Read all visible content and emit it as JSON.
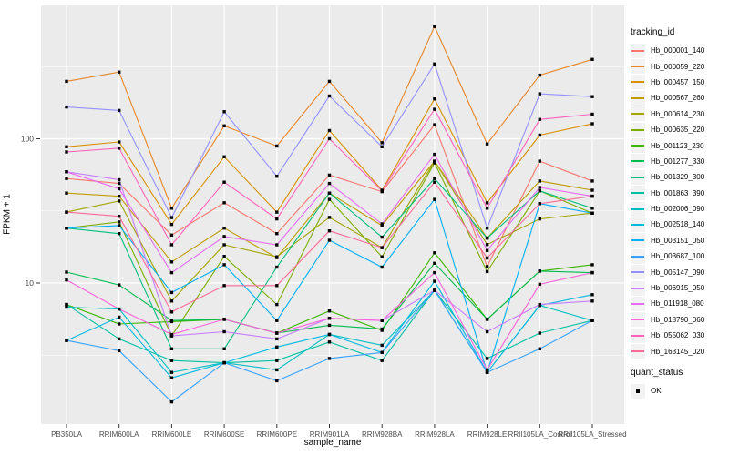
{
  "figure": {
    "legend": {
      "tracking_title": "tracking_id",
      "quant_title": "quant_status",
      "quant_items": [
        "OK"
      ]
    },
    "colors": {
      "page_bg": "#FFFFFF",
      "panel_bg": "#EBEBEB",
      "grid_major": "#FFFFFF",
      "grid_minor": "#FFFFFF",
      "axis_text": "#4D4D4D",
      "title_text": "#000000",
      "legend_key_bg": "#F2F2F2",
      "point": "#000000"
    }
  },
  "chart_data": {
    "type": "line",
    "title": "",
    "xlabel": "sample_name",
    "ylabel": "FPKM + 1",
    "y_scale": "log10",
    "ylim": [
      1,
      790
    ],
    "grid": true,
    "legend_position": "right",
    "y_major_ticks": [
      100,
      10
    ],
    "y_tick_labels": [
      "100",
      "10"
    ],
    "y_minor_gridlines": [
      316.2,
      31.62,
      3.162
    ],
    "point_marker": {
      "shape": "small-black-square",
      "meaning": "quant_status = OK"
    },
    "x_categories": [
      "PB350LA",
      "RRIM600LA",
      "RRIM600LE",
      "RRIM600SE",
      "RRIM600PE",
      "RRIM901LA",
      "RRIM928BA",
      "RRIM928LA",
      "RRIM928LE",
      "RRII105LA_Control",
      "RRII105LA_Stressed"
    ],
    "series": [
      {
        "name": "Hb_000001_140",
        "color": "#F8766D",
        "values": [
          53,
          49,
          21.5,
          36,
          22,
          56,
          43,
          125,
          13,
          70,
          51
        ]
      },
      {
        "name": "Hb_000059_220",
        "color": "#E88526",
        "values": [
          250,
          290,
          33,
          123,
          89,
          250,
          94,
          600,
          92,
          276,
          355
        ]
      },
      {
        "name": "Hb_000457_150",
        "color": "#D89000",
        "values": [
          88,
          95,
          25.5,
          75,
          31,
          114,
          44,
          189,
          36,
          106,
          127
        ]
      },
      {
        "name": "Hb_000567_260",
        "color": "#C09B00",
        "values": [
          42,
          40,
          14,
          24,
          15,
          42,
          25,
          70,
          20.5,
          51,
          44
        ]
      },
      {
        "name": "Hb_000614_230",
        "color": "#A3A500",
        "values": [
          31,
          37,
          7.5,
          18.4,
          15.2,
          28.5,
          17.6,
          70,
          18.5,
          27.8,
          30.5
        ]
      },
      {
        "name": "Hb_000635_220",
        "color": "#7CAE00",
        "values": [
          24,
          26.5,
          4.3,
          15.3,
          7.1,
          38,
          15.2,
          68,
          12,
          43.5,
          30.5
        ]
      },
      {
        "name": "Hb_001123_230",
        "color": "#39B600",
        "values": [
          7.1,
          5.2,
          5.4,
          5.6,
          4.5,
          6.4,
          4.7,
          16.2,
          5.6,
          12.1,
          13.4
        ]
      },
      {
        "name": "Hb_001277_330",
        "color": "#00BB4E",
        "values": [
          11.9,
          9.7,
          5.5,
          5.6,
          4.5,
          5.1,
          4.8,
          13.7,
          5.6,
          12.1,
          11.8
        ]
      },
      {
        "name": "Hb_001329_300",
        "color": "#00BF7D",
        "values": [
          24,
          22,
          3.5,
          3.5,
          12.9,
          42,
          20.8,
          53,
          20.5,
          43.5,
          33
        ]
      },
      {
        "name": "Hb_001863_390",
        "color": "#00C1A3",
        "values": [
          7.1,
          4.1,
          2.9,
          2.8,
          2.9,
          3.9,
          2.9,
          8.9,
          3.0,
          4.5,
          5.5
        ]
      },
      {
        "name": "Hb_002006_090",
        "color": "#00BFC4",
        "values": [
          6.8,
          6.6,
          2.4,
          2.8,
          2.5,
          4.4,
          3.7,
          8.9,
          2.4,
          7.0,
          5.5
        ]
      },
      {
        "name": "Hb_002518_140",
        "color": "#00BAE0",
        "values": [
          4.0,
          5.8,
          2.2,
          2.8,
          3.6,
          4.4,
          3.3,
          10.3,
          2.4,
          7.0,
          8.3
        ]
      },
      {
        "name": "Hb_003151_050",
        "color": "#00B0F6",
        "values": [
          24,
          25,
          8.6,
          13.4,
          5.5,
          19.8,
          12.9,
          38,
          2.4,
          35.5,
          30.5
        ]
      },
      {
        "name": "Hb_003687_100",
        "color": "#35A2FF",
        "values": [
          4.0,
          3.4,
          1.5,
          2.8,
          2.1,
          3.0,
          3.3,
          8.9,
          2.4,
          3.5,
          5.5
        ]
      },
      {
        "name": "Hb_005147_090",
        "color": "#9590FF",
        "values": [
          166,
          157,
          28.4,
          154,
          55,
          198,
          88,
          330,
          24,
          205,
          196
        ]
      },
      {
        "name": "Hb_006915_050",
        "color": "#C77CFF",
        "values": [
          59,
          52,
          4.3,
          4.6,
          4.1,
          5.7,
          5.5,
          8.9,
          4.6,
          7.1,
          7.5
        ]
      },
      {
        "name": "Hb_011918_080",
        "color": "#E76BF3",
        "values": [
          59,
          45,
          11.8,
          21,
          18.4,
          49,
          25.7,
          78,
          16.8,
          46,
          40
        ]
      },
      {
        "name": "Hb_018790_060",
        "color": "#FA62DB",
        "values": [
          10.5,
          6.6,
          4.4,
          5.6,
          4.5,
          5.7,
          5.5,
          11.8,
          2.5,
          9.8,
          11.8
        ]
      },
      {
        "name": "Hb_055062_030",
        "color": "#FF62BC",
        "values": [
          81,
          86,
          18.4,
          50,
          27.8,
          100,
          43.5,
          160,
          33,
          136,
          148
        ]
      },
      {
        "name": "Hb_163145_020",
        "color": "#FF6A98",
        "values": [
          31,
          29,
          6.3,
          9.6,
          9.6,
          23,
          17.6,
          50,
          14.9,
          35.5,
          40
        ]
      }
    ]
  }
}
